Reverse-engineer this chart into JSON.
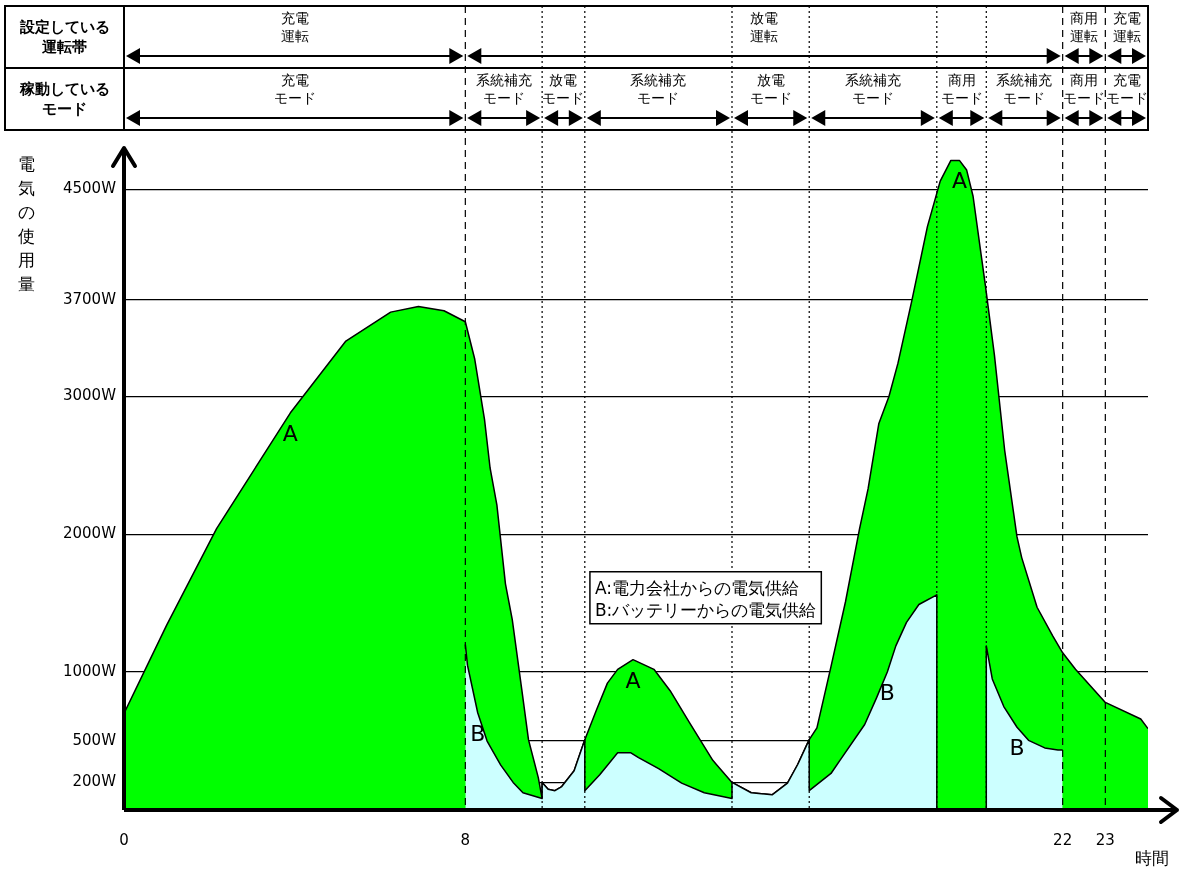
{
  "chart_data": {
    "type": "area",
    "xlabel": "時間",
    "ylabel": "電気の使用量",
    "xlim": [
      0,
      24
    ],
    "xticks": [
      0,
      8,
      22,
      23
    ],
    "ylim": [
      0,
      4800
    ],
    "yticks": [
      {
        "value": 200,
        "label": "200W"
      },
      {
        "value": 500,
        "label": "500W"
      },
      {
        "value": 1000,
        "label": "1000W"
      },
      {
        "value": 2000,
        "label": "2000W"
      },
      {
        "value": 3000,
        "label": "3000W"
      },
      {
        "value": 3700,
        "label": "3700W"
      },
      {
        "value": 4500,
        "label": "4500W"
      }
    ],
    "grid": "y",
    "series": [
      {
        "color": "#00ff00",
        "x": [
          0,
          1,
          2.17,
          3.9,
          5.2,
          6.25,
          6.9,
          7.5,
          8,
          8.22,
          8.45,
          8.58,
          8.74,
          8.94,
          9.1,
          9.32,
          9.48,
          9.71,
          9.8,
          9.8,
          9.94,
          10.1,
          10.26,
          10.55,
          10.8,
          11.08,
          11.33,
          11.57,
          11.93,
          12.42,
          12.8,
          13.25,
          13.8,
          14.25,
          14.7,
          15.19,
          15.55,
          15.79,
          16.06,
          16.24,
          16.57,
          16.91,
          17.24,
          17.44,
          17.69,
          17.93,
          18.14,
          18.47,
          18.83,
          19.13,
          19.38,
          19.58,
          19.75,
          19.9,
          20.19,
          20.4,
          20.64,
          20.93,
          21.04,
          21.4,
          21.77,
          22,
          22.3,
          23,
          23.83,
          24
        ],
        "values": [
          700,
          1340,
          2040,
          2880,
          3400,
          3610,
          3650,
          3620,
          3540,
          3270,
          2830,
          2480,
          2210,
          1640,
          1380,
          880,
          510,
          235,
          83,
          200,
          150,
          140,
          170,
          285,
          510,
          730,
          920,
          1020,
          1090,
          1020,
          865,
          635,
          360,
          200,
          125,
          110,
          195,
          330,
          510,
          595,
          1040,
          1510,
          2040,
          2330,
          2800,
          3000,
          3240,
          3700,
          4230,
          4560,
          4710,
          4710,
          4640,
          4450,
          3800,
          3300,
          2610,
          1980,
          1830,
          1470,
          1260,
          1140,
          1020,
          780,
          660,
          590
        ],
        "value_labels": [
          null,
          null,
          null,
          "A",
          null,
          null,
          null,
          null,
          null,
          null,
          null,
          null,
          null,
          null,
          null,
          null,
          null,
          null,
          null,
          null,
          null,
          null,
          null,
          null,
          null,
          null,
          null,
          null,
          "A",
          null,
          null,
          null,
          null,
          null,
          null,
          null,
          null,
          null,
          null,
          null,
          null,
          null,
          null,
          null,
          null,
          null,
          null,
          null,
          null,
          null,
          null,
          "A",
          null,
          null,
          null,
          null,
          null,
          null,
          null,
          null,
          null,
          null,
          null,
          null,
          null,
          null
        ]
      },
      {
        "color": "#ccffff",
        "x": [
          8,
          8.05,
          8.29,
          8.51,
          8.83,
          9.12,
          9.35,
          9.8,
          9.8,
          9.94,
          10.1,
          10.26,
          10.55,
          10.8,
          10.8,
          11.15,
          11.57,
          11.88,
          12.06,
          12.53,
          13.07,
          13.6,
          14.25,
          14.25,
          14.7,
          15.19,
          15.55,
          15.79,
          16.06,
          16.06,
          16.57,
          16.78,
          17.36,
          17.64,
          17.89,
          18.09,
          18.34,
          18.63,
          19.05,
          19.05,
          20.21,
          20.21,
          20.35,
          20.62,
          20.93,
          21.2,
          21.58,
          21.89,
          22
        ],
        "values": [
          1200,
          1050,
          705,
          500,
          325,
          200,
          125,
          83,
          200,
          150,
          140,
          170,
          285,
          510,
          140,
          255,
          415,
          415,
          380,
          300,
          195,
          125,
          83,
          200,
          125,
          110,
          195,
          330,
          510,
          140,
          265,
          360,
          620,
          815,
          1000,
          1190,
          1360,
          1490,
          1560,
          0,
          0,
          1190,
          950,
          750,
          600,
          505,
          450,
          435,
          435
        ],
        "value_labels": [
          null,
          null,
          "B",
          null,
          null,
          null,
          null,
          null,
          null,
          null,
          null,
          null,
          null,
          null,
          null,
          null,
          null,
          null,
          null,
          null,
          null,
          null,
          null,
          null,
          null,
          null,
          null,
          null,
          null,
          null,
          null,
          null,
          null,
          null,
          "B",
          null,
          null,
          null,
          null,
          null,
          null,
          null,
          null,
          null,
          "B",
          null,
          null,
          null,
          null
        ]
      }
    ],
    "ref_lines": [
      {
        "axis": "x",
        "value": 8,
        "line_style": "dashed"
      },
      {
        "axis": "x",
        "value": 9.8,
        "line_style": "dotted"
      },
      {
        "axis": "x",
        "value": 10.8,
        "line_style": "dotted"
      },
      {
        "axis": "x",
        "value": 14.25,
        "line_style": "dotted"
      },
      {
        "axis": "x",
        "value": 16.06,
        "line_style": "dotted"
      },
      {
        "axis": "x",
        "value": 19.05,
        "line_style": "dotted"
      },
      {
        "axis": "x",
        "value": 20.21,
        "line_style": "dotted"
      },
      {
        "axis": "x",
        "value": 22,
        "line_style": "dashed"
      },
      {
        "axis": "x",
        "value": 23,
        "line_style": "dashed"
      }
    ],
    "annotations": [
      "設定している",
      "運転帯",
      "稼動している",
      "モード",
      "充電",
      "運転",
      "放電",
      "運転",
      "商用",
      "運転",
      "充電",
      "運転",
      "充電",
      "モード",
      "系統補充",
      "モード",
      "放電",
      "モード",
      "系統補充",
      "モード",
      "放電",
      "モード",
      "系統補充",
      "モード",
      "商用",
      "モード",
      "系統補充",
      "モード",
      "商用",
      "モード",
      "充電",
      "モード",
      "A:電力会社からの電気供給",
      "B:バッテリーからの電気供給"
    ]
  }
}
